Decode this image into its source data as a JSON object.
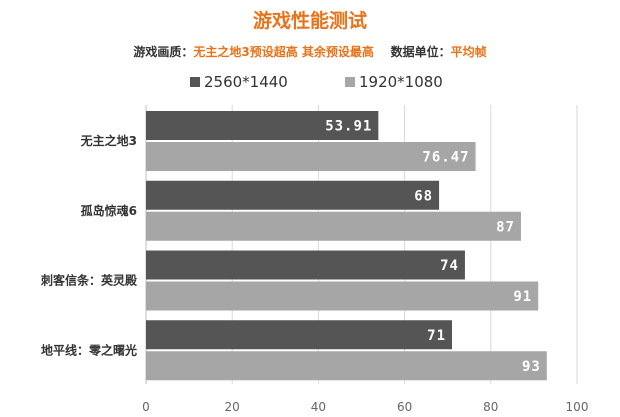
{
  "colors": {
    "title": "#e8731a",
    "accent": "#e8731a",
    "series_dark": "#555555",
    "series_light": "#a6a6a6",
    "grid": "#d9d9d9",
    "text": "#333333",
    "axis_text": "#666666"
  },
  "subtitle": {
    "quality_label": "游戏画质：",
    "quality_value": "无主之地3预设超高 其余预设最高",
    "unit_label": "数据单位：",
    "unit_value": "平均帧"
  },
  "chart_data": {
    "type": "bar",
    "orientation": "horizontal",
    "title": "游戏性能测试",
    "categories": [
      "无主之地3",
      "孤岛惊魂6",
      "刺客信条：英灵殿",
      "地平线：零之曙光"
    ],
    "series": [
      {
        "name": "2560*1440",
        "values": [
          53.91,
          68,
          74,
          71
        ]
      },
      {
        "name": "1920*1080",
        "values": [
          76.47,
          87,
          91,
          93
        ]
      }
    ],
    "value_labels": [
      [
        "53.91",
        "68",
        "74",
        "71"
      ],
      [
        "76.47",
        "87",
        "91",
        "93"
      ]
    ],
    "xlim": [
      0,
      100
    ],
    "xticks": [
      0,
      20,
      40,
      60,
      80,
      100
    ],
    "xtick_labels": [
      "0",
      "20",
      "40",
      "60",
      "80",
      "100"
    ],
    "grid": true,
    "legend_position": "top"
  }
}
